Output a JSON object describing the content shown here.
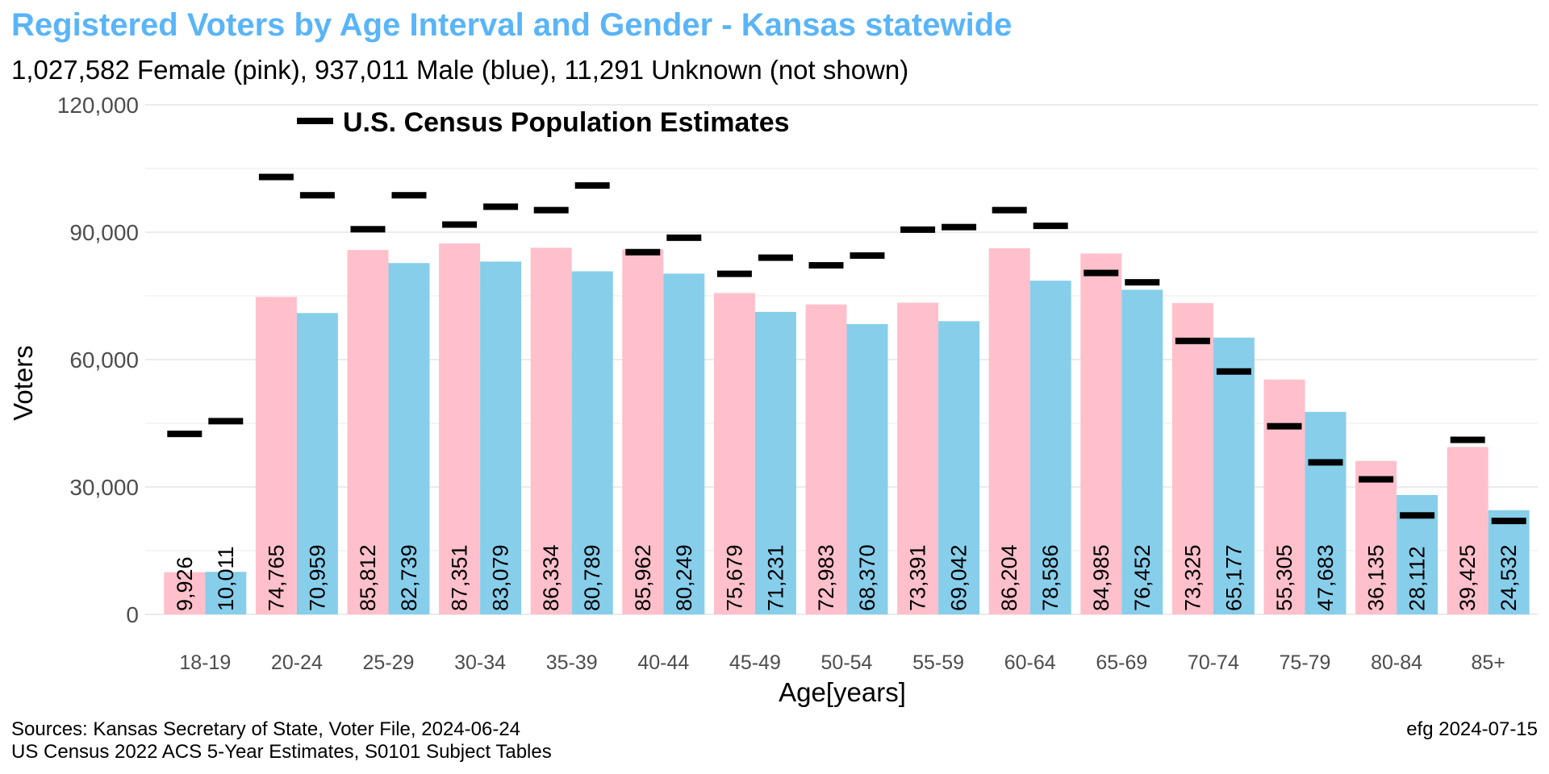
{
  "chart_data": {
    "type": "bar",
    "title": "Registered Voters by Age Interval and Gender - Kansas statewide",
    "subtitle": "1,027,582 Female (pink),  937,011 Male (blue),  11,291 Unknown (not shown)",
    "xlabel": "Age[years]",
    "ylabel": "Voters",
    "ylim": [
      0,
      120000
    ],
    "yticks": [
      0,
      30000,
      60000,
      90000,
      120000
    ],
    "ytick_labels": [
      "0",
      "30,000",
      "60,000",
      "90,000",
      "120,000"
    ],
    "grid": true,
    "legend": {
      "label": "U.S. Census Population Estimates",
      "placement": "top-left"
    },
    "categories": [
      "18-19",
      "20-24",
      "25-29",
      "30-34",
      "35-39",
      "40-44",
      "45-49",
      "50-54",
      "55-59",
      "60-64",
      "65-69",
      "70-74",
      "75-79",
      "80-84",
      "85+"
    ],
    "series": [
      {
        "color": "#FFC0CB",
        "values": [
          9926,
          74765,
          85812,
          87351,
          86334,
          85962,
          75679,
          72983,
          73391,
          86204,
          84985,
          73325,
          55305,
          36135,
          39425
        ],
        "labels": [
          "9,926",
          "74,765",
          "85,812",
          "87,351",
          "86,334",
          "85,962",
          "75,679",
          "72,983",
          "73,391",
          "86,204",
          "84,985",
          "73,325",
          "55,305",
          "36,135",
          "39,425"
        ],
        "census": [
          42500,
          103000,
          90700,
          91800,
          95200,
          85300,
          80200,
          82200,
          90600,
          95200,
          80400,
          64400,
          44300,
          31800,
          41100
        ]
      },
      {
        "color": "#87CEEB",
        "values": [
          10011,
          70959,
          82739,
          83079,
          80789,
          80249,
          71231,
          68370,
          69042,
          78586,
          76452,
          65177,
          47683,
          28112,
          24532
        ],
        "labels": [
          "10,011",
          "70,959",
          "82,739",
          "83,079",
          "80,789",
          "80,249",
          "71,231",
          "68,370",
          "69,042",
          "78,586",
          "76,452",
          "65,177",
          "47,683",
          "28,112",
          "24,532"
        ],
        "census": [
          45500,
          98700,
          98700,
          96000,
          101000,
          88700,
          84000,
          84500,
          91200,
          91500,
          78200,
          57200,
          35800,
          23300,
          22000
        ]
      }
    ]
  },
  "colors": {
    "title": "#5AB4F8",
    "census_marker": "#000000",
    "grid": "#EBEBEB"
  },
  "footer": {
    "source_line1": "Sources: Kansas Secretary of State, Voter File, 2024-06-24",
    "source_line2": "US Census 2022 ACS 5-Year Estimates, S0101 Subject Tables",
    "credit": "efg 2024-07-15"
  }
}
